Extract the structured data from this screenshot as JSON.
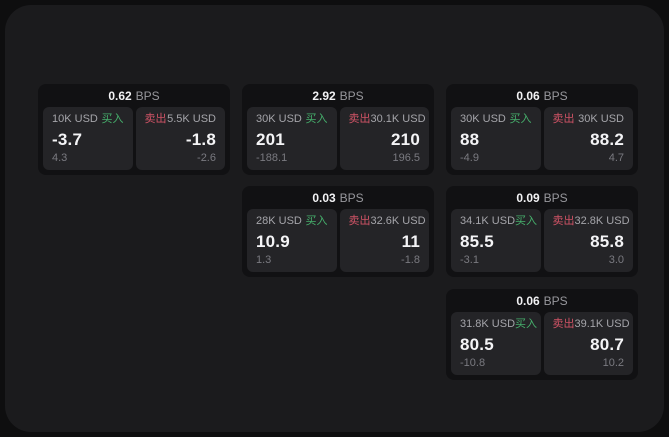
{
  "labels": {
    "bps": "BPS",
    "buy": "买入",
    "sell": "卖出"
  },
  "colors": {
    "background": "#0e0e0f",
    "panel": "#1b1b1d",
    "card": "#111113",
    "tile": "#242427",
    "buy_accent": "#46b06c",
    "sell_accent": "#d05366",
    "value_text": "#f4f4f6",
    "muted_text": "#a5a5aa",
    "dim_text": "#7a7a80"
  },
  "cards": [
    {
      "bps": "0.62",
      "buy": {
        "amount": "10K USD",
        "value": "-3.7",
        "delta": "4.3"
      },
      "sell": {
        "amount": "5.5K USD",
        "value": "-1.8",
        "delta": "-2.6"
      }
    },
    {
      "bps": "2.92",
      "buy": {
        "amount": "30K USD",
        "value": "201",
        "delta": "-188.1"
      },
      "sell": {
        "amount": "30.1K USD",
        "value": "210",
        "delta": "196.5"
      }
    },
    {
      "bps": "0.06",
      "buy": {
        "amount": "30K USD",
        "value": "88",
        "delta": "-4.9"
      },
      "sell": {
        "amount": "30K USD",
        "value": "88.2",
        "delta": "4.7"
      }
    },
    {
      "bps": "0.03",
      "buy": {
        "amount": "28K USD",
        "value": "10.9",
        "delta": "1.3"
      },
      "sell": {
        "amount": "32.6K USD",
        "value": "11",
        "delta": "-1.8"
      }
    },
    {
      "bps": "0.09",
      "buy": {
        "amount": "34.1K USD",
        "value": "85.5",
        "delta": "-3.1"
      },
      "sell": {
        "amount": "32.8K USD",
        "value": "85.8",
        "delta": "3.0"
      }
    },
    {
      "bps": "0.06",
      "buy": {
        "amount": "31.8K USD",
        "value": "80.5",
        "delta": "-10.8"
      },
      "sell": {
        "amount": "39.1K USD",
        "value": "80.7",
        "delta": "10.2"
      }
    }
  ]
}
